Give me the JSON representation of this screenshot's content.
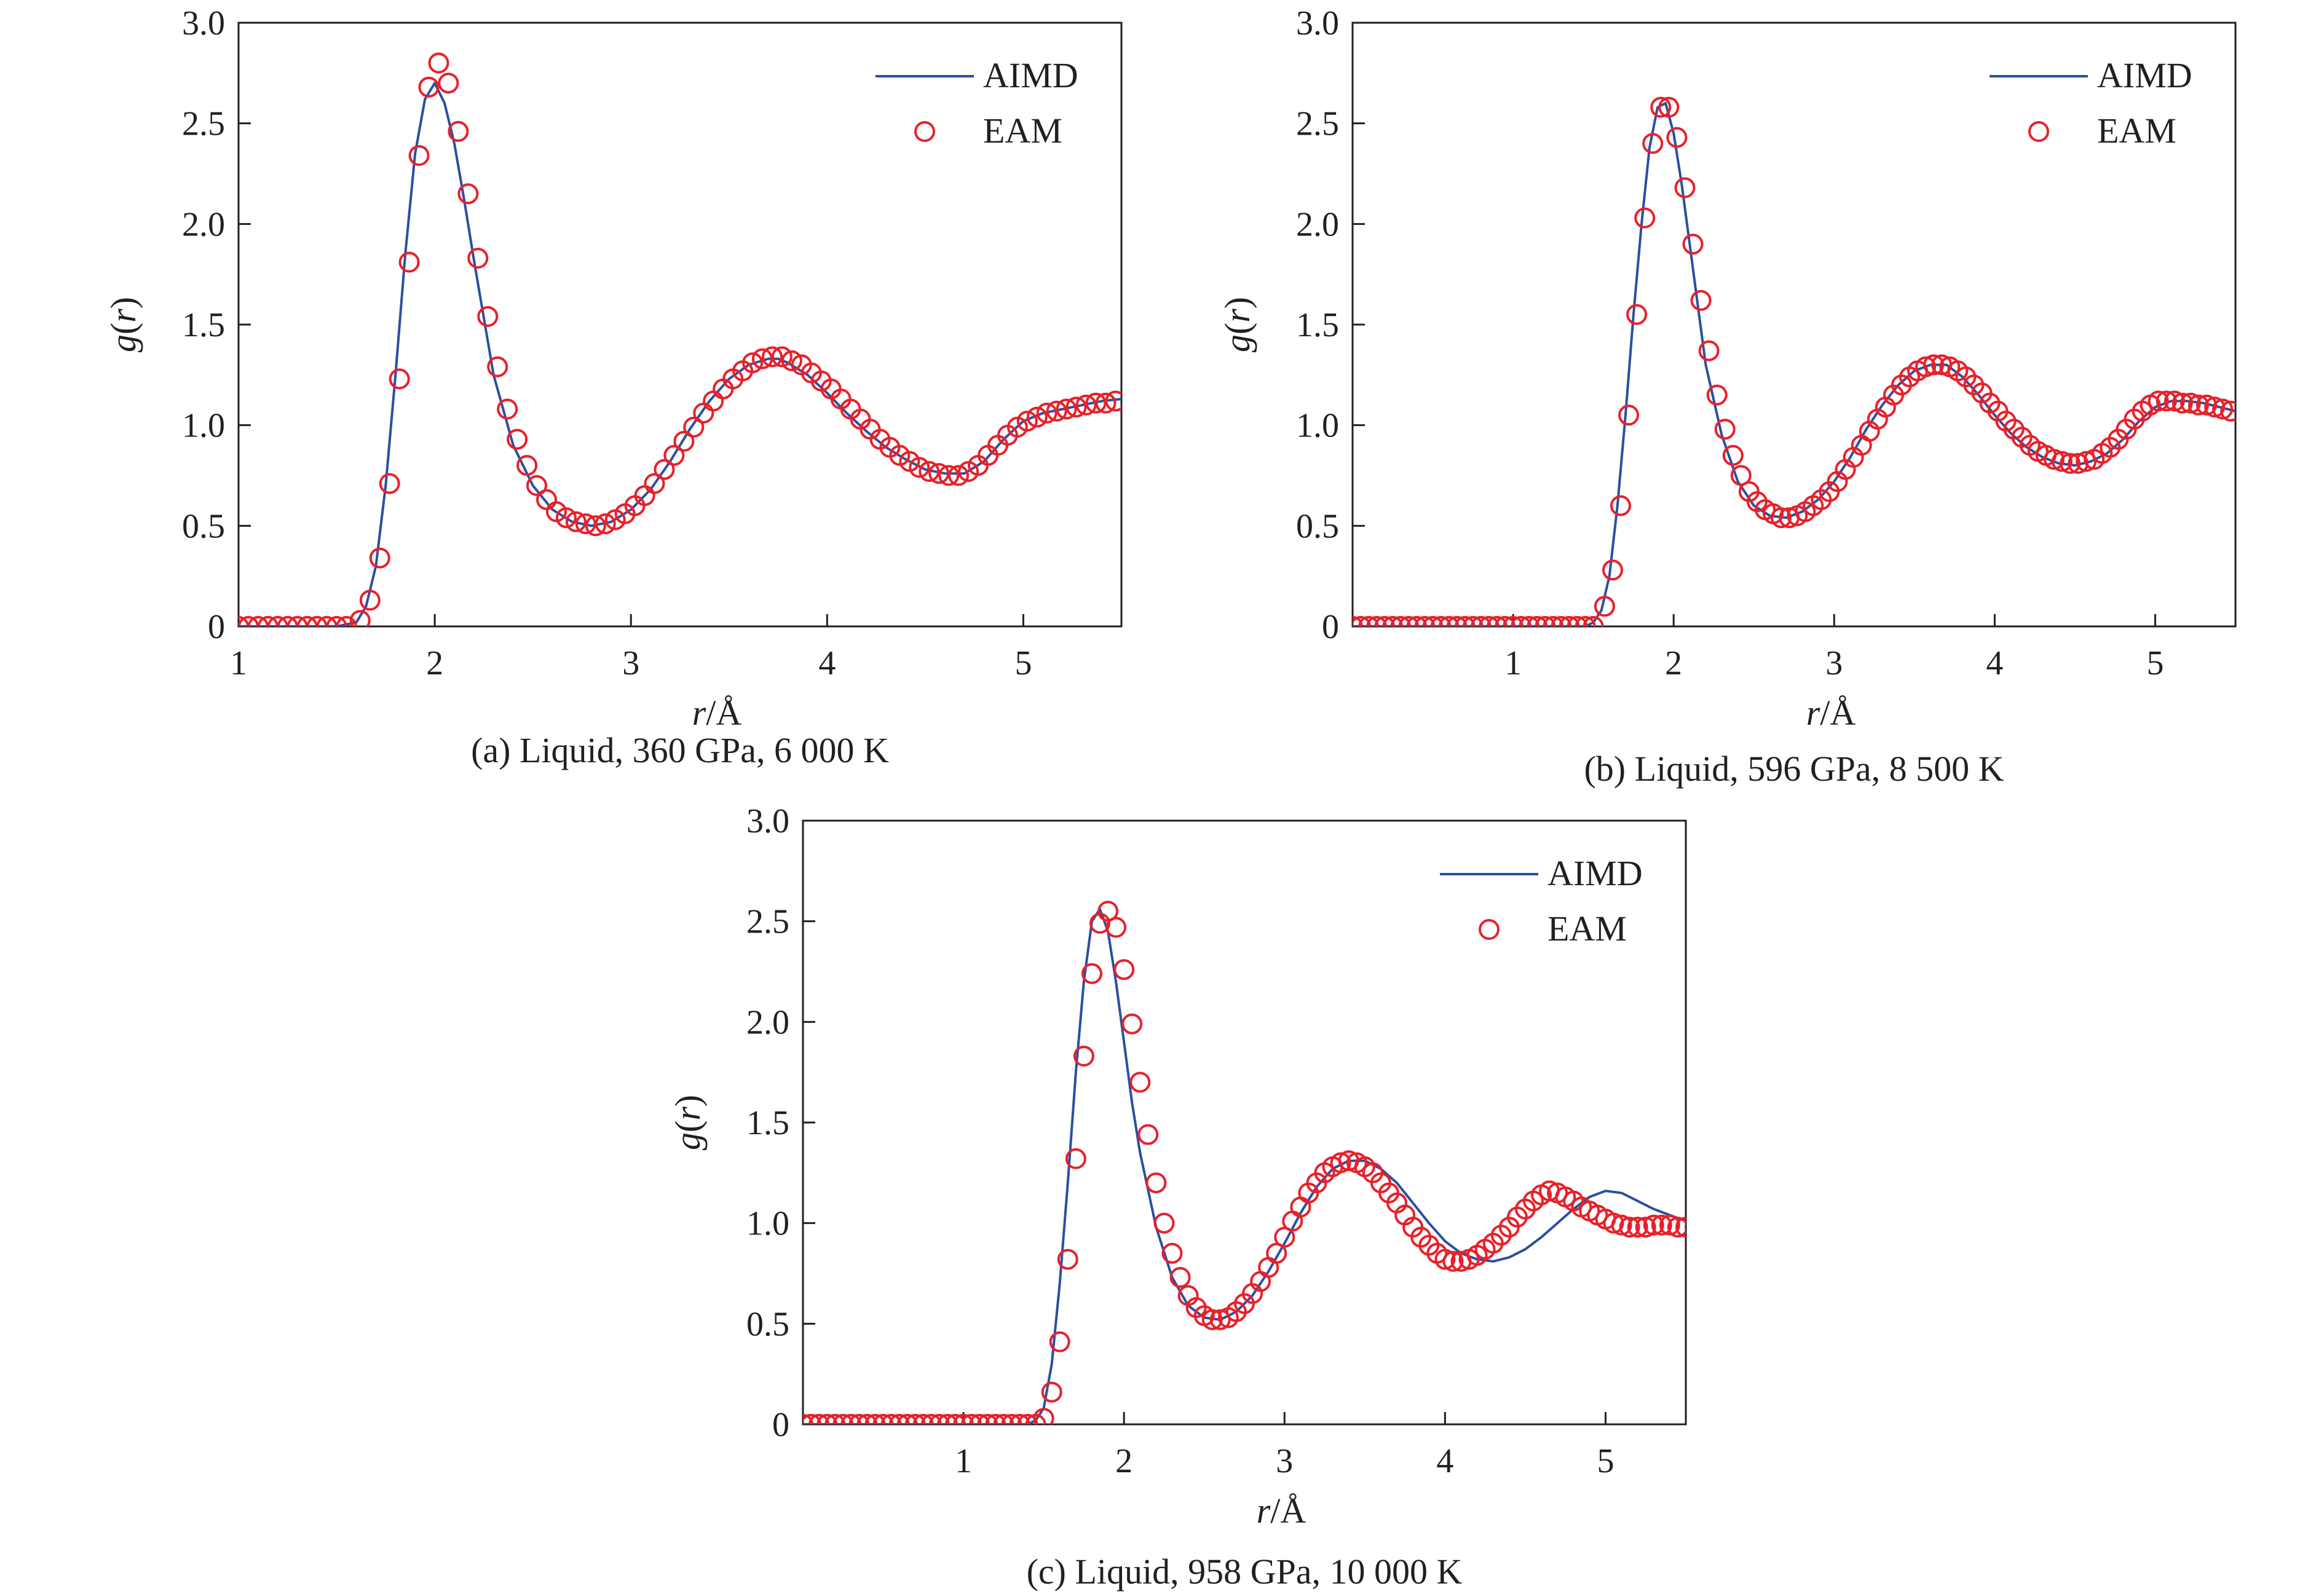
{
  "colors": {
    "aimd_line": "#2b4fa0",
    "eam_marker": "#e8202a",
    "axis": "#231f20"
  },
  "chart_data": [
    {
      "type": "line",
      "caption": "(a) Liquid, 360 GPa, 6 000 K",
      "xlabel_italic": "r",
      "xlabel_unit": "/Å",
      "ylabel_italic": "g",
      "ylabel_open": "(",
      "ylabel_var": "r",
      "ylabel_close": ")",
      "xlim": [
        1,
        5.5
      ],
      "ylim": [
        0,
        3.0
      ],
      "xticks": [
        1,
        2,
        3,
        4,
        5
      ],
      "yticks": [
        0,
        0.5,
        1.0,
        1.5,
        2.0,
        2.5,
        3.0
      ],
      "xtick_labels": [
        "1",
        "2",
        "3",
        "4",
        "5"
      ],
      "ytick_labels": [
        "0",
        "0.5",
        "1.0",
        "1.5",
        "2.0",
        "2.5",
        "3.0"
      ],
      "legend_position": "top-right",
      "series": [
        {
          "name": "AIMD",
          "style": "line",
          "x": [
            1.0,
            1.5,
            1.6,
            1.65,
            1.7,
            1.75,
            1.8,
            1.85,
            1.9,
            1.95,
            2.0,
            2.05,
            2.1,
            2.15,
            2.2,
            2.3,
            2.4,
            2.5,
            2.6,
            2.7,
            2.8,
            2.9,
            3.0,
            3.1,
            3.2,
            3.3,
            3.4,
            3.5,
            3.6,
            3.7,
            3.75,
            3.8,
            3.9,
            4.0,
            4.1,
            4.2,
            4.3,
            4.4,
            4.5,
            4.6,
            4.7,
            4.8,
            4.9,
            5.0,
            5.1,
            5.2,
            5.3,
            5.4,
            5.5
          ],
          "y": [
            0.0,
            0.0,
            0.02,
            0.1,
            0.3,
            0.7,
            1.25,
            1.85,
            2.35,
            2.62,
            2.7,
            2.6,
            2.4,
            2.12,
            1.82,
            1.25,
            0.9,
            0.7,
            0.58,
            0.52,
            0.5,
            0.52,
            0.58,
            0.68,
            0.82,
            0.98,
            1.12,
            1.23,
            1.3,
            1.33,
            1.33,
            1.31,
            1.25,
            1.16,
            1.06,
            0.97,
            0.89,
            0.83,
            0.78,
            0.76,
            0.76,
            0.82,
            0.93,
            1.02,
            1.06,
            1.08,
            1.1,
            1.12,
            1.13
          ]
        },
        {
          "name": "EAM",
          "style": "marker",
          "x": [
            1.0,
            1.05,
            1.1,
            1.15,
            1.2,
            1.25,
            1.3,
            1.35,
            1.4,
            1.45,
            1.5,
            1.55,
            1.62,
            1.67,
            1.72,
            1.77,
            1.82,
            1.87,
            1.92,
            1.97,
            2.02,
            2.07,
            2.12,
            2.17,
            2.22,
            2.27,
            2.32,
            2.37,
            2.42,
            2.47,
            2.52,
            2.57,
            2.62,
            2.67,
            2.72,
            2.77,
            2.82,
            2.87,
            2.92,
            2.97,
            3.02,
            3.07,
            3.12,
            3.17,
            3.22,
            3.27,
            3.32,
            3.37,
            3.42,
            3.47,
            3.52,
            3.57,
            3.62,
            3.67,
            3.72,
            3.77,
            3.82,
            3.87,
            3.92,
            3.97,
            4.02,
            4.07,
            4.12,
            4.17,
            4.22,
            4.27,
            4.32,
            4.37,
            4.42,
            4.47,
            4.52,
            4.57,
            4.62,
            4.67,
            4.72,
            4.77,
            4.82,
            4.87,
            4.92,
            4.97,
            5.02,
            5.07,
            5.12,
            5.17,
            5.22,
            5.27,
            5.32,
            5.37,
            5.42,
            5.47
          ],
          "y": [
            0.0,
            0.0,
            0.0,
            0.0,
            0.0,
            0.0,
            0.0,
            0.0,
            0.0,
            0.0,
            0.0,
            0.0,
            0.03,
            0.13,
            0.34,
            0.71,
            1.23,
            1.81,
            2.34,
            2.68,
            2.8,
            2.7,
            2.46,
            2.15,
            1.83,
            1.54,
            1.29,
            1.08,
            0.93,
            0.8,
            0.7,
            0.63,
            0.57,
            0.54,
            0.52,
            0.51,
            0.5,
            0.51,
            0.53,
            0.56,
            0.6,
            0.65,
            0.71,
            0.78,
            0.85,
            0.92,
            0.99,
            1.06,
            1.12,
            1.18,
            1.23,
            1.27,
            1.31,
            1.33,
            1.34,
            1.34,
            1.32,
            1.3,
            1.26,
            1.22,
            1.18,
            1.13,
            1.08,
            1.03,
            0.98,
            0.93,
            0.89,
            0.85,
            0.82,
            0.79,
            0.77,
            0.76,
            0.75,
            0.75,
            0.77,
            0.8,
            0.85,
            0.9,
            0.95,
            0.99,
            1.02,
            1.04,
            1.06,
            1.07,
            1.08,
            1.09,
            1.1,
            1.11,
            1.11,
            1.12
          ]
        }
      ]
    },
    {
      "type": "line",
      "caption": "(b) Liquid, 596 GPa, 8 500 K",
      "xlabel_italic": "r",
      "xlabel_unit": "/Å",
      "ylabel_italic": "g",
      "ylabel_open": "(",
      "ylabel_var": "r",
      "ylabel_close": ")",
      "xlim": [
        0,
        5.5
      ],
      "ylim": [
        0,
        3.0
      ],
      "xticks": [
        1,
        2,
        3,
        4,
        5
      ],
      "yticks": [
        0,
        0.5,
        1.0,
        1.5,
        2.0,
        2.5,
        3.0
      ],
      "xtick_labels": [
        "1",
        "2",
        "3",
        "4",
        "5"
      ],
      "ytick_labels": [
        "0",
        "0.5",
        "1.0",
        "1.5",
        "2.0",
        "2.5",
        "3.0"
      ],
      "legend_position": "top-right",
      "series": [
        {
          "name": "AIMD",
          "style": "line",
          "x": [
            0.0,
            1.45,
            1.5,
            1.55,
            1.6,
            1.65,
            1.7,
            1.75,
            1.8,
            1.85,
            1.9,
            1.95,
            2.0,
            2.05,
            2.1,
            2.15,
            2.2,
            2.3,
            2.4,
            2.5,
            2.6,
            2.7,
            2.8,
            2.9,
            3.0,
            3.1,
            3.2,
            3.3,
            3.4,
            3.5,
            3.6,
            3.7,
            3.8,
            3.9,
            4.0,
            4.1,
            4.2,
            4.3,
            4.4,
            4.5,
            4.6,
            4.7,
            4.8,
            4.9,
            5.0,
            5.1,
            5.2,
            5.3,
            5.4,
            5.5
          ],
          "y": [
            0.0,
            0.0,
            0.02,
            0.08,
            0.25,
            0.6,
            1.05,
            1.55,
            2.0,
            2.38,
            2.58,
            2.6,
            2.45,
            2.2,
            1.9,
            1.6,
            1.3,
            0.95,
            0.72,
            0.6,
            0.55,
            0.54,
            0.57,
            0.63,
            0.72,
            0.84,
            0.98,
            1.1,
            1.2,
            1.27,
            1.3,
            1.3,
            1.24,
            1.15,
            1.05,
            0.96,
            0.89,
            0.84,
            0.81,
            0.8,
            0.82,
            0.86,
            0.93,
            1.02,
            1.09,
            1.12,
            1.12,
            1.11,
            1.09,
            1.07
          ]
        },
        {
          "name": "EAM",
          "style": "marker",
          "x": [
            0.0,
            0.05,
            0.1,
            0.15,
            0.2,
            0.25,
            0.3,
            0.35,
            0.4,
            0.45,
            0.5,
            0.55,
            0.6,
            0.65,
            0.7,
            0.75,
            0.8,
            0.85,
            0.9,
            0.95,
            1.0,
            1.05,
            1.1,
            1.15,
            1.2,
            1.25,
            1.3,
            1.35,
            1.4,
            1.45,
            1.5,
            1.57,
            1.62,
            1.67,
            1.72,
            1.77,
            1.82,
            1.87,
            1.92,
            1.97,
            2.02,
            2.07,
            2.12,
            2.17,
            2.22,
            2.27,
            2.32,
            2.37,
            2.42,
            2.47,
            2.52,
            2.57,
            2.62,
            2.67,
            2.72,
            2.77,
            2.82,
            2.87,
            2.92,
            2.97,
            3.02,
            3.07,
            3.12,
            3.17,
            3.22,
            3.27,
            3.32,
            3.37,
            3.42,
            3.47,
            3.52,
            3.57,
            3.62,
            3.67,
            3.72,
            3.77,
            3.82,
            3.87,
            3.92,
            3.97,
            4.02,
            4.07,
            4.12,
            4.17,
            4.22,
            4.27,
            4.32,
            4.37,
            4.42,
            4.47,
            4.52,
            4.57,
            4.62,
            4.67,
            4.72,
            4.77,
            4.82,
            4.87,
            4.92,
            4.97,
            5.02,
            5.07,
            5.12,
            5.17,
            5.22,
            5.27,
            5.32,
            5.37,
            5.42,
            5.47
          ],
          "y": [
            0.0,
            0.0,
            0.0,
            0.0,
            0.0,
            0.0,
            0.0,
            0.0,
            0.0,
            0.0,
            0.0,
            0.0,
            0.0,
            0.0,
            0.0,
            0.0,
            0.0,
            0.0,
            0.0,
            0.0,
            0.0,
            0.0,
            0.0,
            0.0,
            0.0,
            0.0,
            0.0,
            0.0,
            0.0,
            0.0,
            0.0,
            0.1,
            0.28,
            0.6,
            1.05,
            1.55,
            2.03,
            2.4,
            2.58,
            2.58,
            2.43,
            2.18,
            1.9,
            1.62,
            1.37,
            1.15,
            0.98,
            0.85,
            0.75,
            0.67,
            0.62,
            0.58,
            0.56,
            0.54,
            0.54,
            0.55,
            0.57,
            0.6,
            0.63,
            0.67,
            0.72,
            0.78,
            0.84,
            0.9,
            0.97,
            1.03,
            1.09,
            1.15,
            1.2,
            1.24,
            1.27,
            1.29,
            1.3,
            1.3,
            1.29,
            1.27,
            1.24,
            1.2,
            1.16,
            1.11,
            1.07,
            1.02,
            0.98,
            0.94,
            0.9,
            0.87,
            0.85,
            0.83,
            0.82,
            0.81,
            0.81,
            0.82,
            0.83,
            0.86,
            0.89,
            0.93,
            0.98,
            1.03,
            1.07,
            1.1,
            1.12,
            1.12,
            1.12,
            1.11,
            1.11,
            1.1,
            1.1,
            1.09,
            1.08,
            1.07
          ]
        }
      ]
    },
    {
      "type": "line",
      "caption": "(c) Liquid, 958 GPa, 10 000 K",
      "xlabel_italic": "r",
      "xlabel_unit": "/Å",
      "ylabel_italic": "g",
      "ylabel_open": "(",
      "ylabel_var": "r",
      "ylabel_close": ")",
      "xlim": [
        0,
        5.5
      ],
      "ylim": [
        0,
        3.0
      ],
      "xticks": [
        1,
        2,
        3,
        4,
        5
      ],
      "yticks": [
        0,
        0.5,
        1.0,
        1.5,
        2.0,
        2.5,
        3.0
      ],
      "xtick_labels": [
        "1",
        "2",
        "3",
        "4",
        "5"
      ],
      "ytick_labels": [
        "0",
        "0.5",
        "1.0",
        "1.5",
        "2.0",
        "2.5",
        "3.0"
      ],
      "legend_position": "top-right",
      "series": [
        {
          "name": "AIMD",
          "style": "line",
          "x": [
            0.0,
            1.4,
            1.45,
            1.5,
            1.55,
            1.6,
            1.65,
            1.7,
            1.75,
            1.8,
            1.85,
            1.9,
            1.95,
            2.0,
            2.05,
            2.1,
            2.2,
            2.3,
            2.4,
            2.5,
            2.6,
            2.7,
            2.8,
            2.9,
            3.0,
            3.1,
            3.2,
            3.3,
            3.4,
            3.5,
            3.6,
            3.7,
            3.8,
            3.9,
            4.0,
            4.1,
            4.2,
            4.3,
            4.4,
            4.5,
            4.6,
            4.7,
            4.8,
            4.9,
            5.0,
            5.1,
            5.2,
            5.3,
            5.4,
            5.5
          ],
          "y": [
            0.0,
            0.0,
            0.02,
            0.08,
            0.3,
            0.7,
            1.2,
            1.75,
            2.2,
            2.5,
            2.56,
            2.45,
            2.2,
            1.9,
            1.6,
            1.35,
            0.98,
            0.73,
            0.59,
            0.53,
            0.52,
            0.56,
            0.64,
            0.76,
            0.9,
            1.05,
            1.18,
            1.27,
            1.31,
            1.31,
            1.27,
            1.2,
            1.1,
            1.0,
            0.91,
            0.85,
            0.82,
            0.81,
            0.83,
            0.87,
            0.93,
            1.0,
            1.07,
            1.13,
            1.16,
            1.15,
            1.11,
            1.07,
            1.04,
            1.01
          ]
        },
        {
          "name": "EAM",
          "style": "marker",
          "x": [
            0.0,
            0.05,
            0.1,
            0.15,
            0.2,
            0.25,
            0.3,
            0.35,
            0.4,
            0.45,
            0.5,
            0.55,
            0.6,
            0.65,
            0.7,
            0.75,
            0.8,
            0.85,
            0.9,
            0.95,
            1.0,
            1.05,
            1.1,
            1.15,
            1.2,
            1.25,
            1.3,
            1.35,
            1.4,
            1.45,
            1.5,
            1.55,
            1.6,
            1.65,
            1.7,
            1.75,
            1.8,
            1.85,
            1.9,
            1.95,
            2.0,
            2.05,
            2.1,
            2.15,
            2.2,
            2.25,
            2.3,
            2.35,
            2.4,
            2.45,
            2.5,
            2.55,
            2.6,
            2.65,
            2.7,
            2.75,
            2.8,
            2.85,
            2.9,
            2.95,
            3.0,
            3.05,
            3.1,
            3.15,
            3.2,
            3.25,
            3.3,
            3.35,
            3.4,
            3.45,
            3.5,
            3.55,
            3.6,
            3.65,
            3.7,
            3.75,
            3.8,
            3.85,
            3.9,
            3.95,
            4.0,
            4.05,
            4.1,
            4.15,
            4.2,
            4.25,
            4.3,
            4.35,
            4.4,
            4.45,
            4.5,
            4.55,
            4.6,
            4.65,
            4.7,
            4.75,
            4.8,
            4.85,
            4.9,
            4.95,
            5.0,
            5.05,
            5.1,
            5.15,
            5.2,
            5.25,
            5.3,
            5.35,
            5.4,
            5.45,
            5.5
          ],
          "y": [
            0.0,
            0.0,
            0.0,
            0.0,
            0.0,
            0.0,
            0.0,
            0.0,
            0.0,
            0.0,
            0.0,
            0.0,
            0.0,
            0.0,
            0.0,
            0.0,
            0.0,
            0.0,
            0.0,
            0.0,
            0.0,
            0.0,
            0.0,
            0.0,
            0.0,
            0.0,
            0.0,
            0.0,
            0.0,
            0.0,
            0.03,
            0.16,
            0.41,
            0.82,
            1.32,
            1.83,
            2.24,
            2.49,
            2.55,
            2.47,
            2.26,
            1.99,
            1.7,
            1.44,
            1.2,
            1.0,
            0.85,
            0.73,
            0.64,
            0.58,
            0.54,
            0.52,
            0.52,
            0.53,
            0.56,
            0.6,
            0.65,
            0.71,
            0.78,
            0.85,
            0.93,
            1.01,
            1.08,
            1.15,
            1.2,
            1.25,
            1.28,
            1.3,
            1.31,
            1.3,
            1.28,
            1.25,
            1.2,
            1.15,
            1.1,
            1.04,
            0.98,
            0.93,
            0.89,
            0.85,
            0.82,
            0.81,
            0.81,
            0.82,
            0.84,
            0.87,
            0.9,
            0.94,
            0.98,
            1.03,
            1.07,
            1.11,
            1.14,
            1.16,
            1.15,
            1.13,
            1.11,
            1.08,
            1.06,
            1.04,
            1.02,
            1.0,
            0.99,
            0.98,
            0.98,
            0.98,
            0.99,
            0.99,
            0.99,
            0.98,
            0.98
          ]
        }
      ]
    }
  ]
}
